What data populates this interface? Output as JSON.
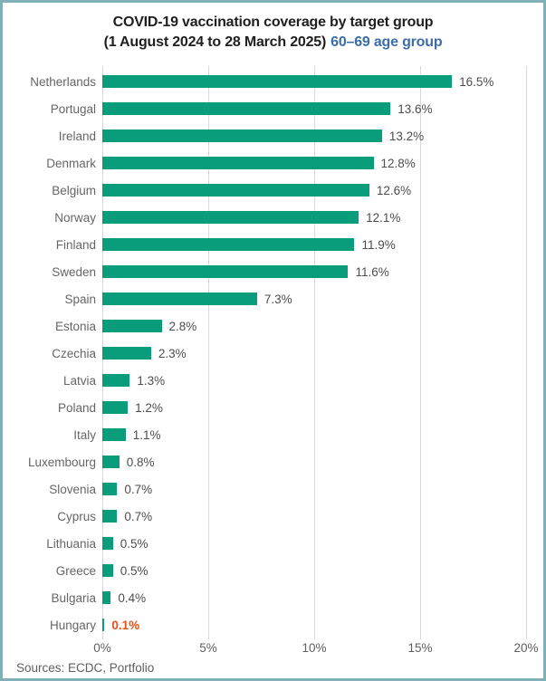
{
  "title": {
    "line1": "COVID-19 vaccination coverage by target group",
    "line2_prefix": "(1 August 2024 to 28 March 2025)",
    "line2_highlight": "60–69 age group"
  },
  "footer": {
    "sources": "Sources: ECDC, Portfolio"
  },
  "colors": {
    "frame_border": "#80b1b9",
    "bar": "#0a9d7c",
    "title_text": "#1f1f1f",
    "title_highlight": "#3d6da8",
    "country_label": "#666666",
    "value_label": "#4d4d4d",
    "highlight_value": "#ed4d16",
    "gridline": "#d8d8d8",
    "axis_label": "#5f5f5f"
  },
  "chart_data": {
    "type": "bar",
    "orientation": "horizontal",
    "title": "COVID-19 vaccination coverage by target group (1 August 2024 to 28 March 2025) 60–69 age group",
    "xlabel": "",
    "ylabel": "",
    "xlim": [
      0,
      20
    ],
    "grid": true,
    "legend": false,
    "categories": [
      "Netherlands",
      "Portugal",
      "Ireland",
      "Denmark",
      "Belgium",
      "Norway",
      "Finland",
      "Sweden",
      "Spain",
      "Estonia",
      "Czechia",
      "Latvia",
      "Poland",
      "Italy",
      "Luxembourg",
      "Slovenia",
      "Cyprus",
      "Lithuania",
      "Greece",
      "Bulgaria",
      "Hungary"
    ],
    "values": [
      16.5,
      13.6,
      13.2,
      12.8,
      12.6,
      12.1,
      11.9,
      11.6,
      7.3,
      2.8,
      2.3,
      1.3,
      1.2,
      1.1,
      0.8,
      0.7,
      0.7,
      0.5,
      0.5,
      0.4,
      0.1
    ],
    "value_labels": [
      "16.5%",
      "13.6%",
      "13.2%",
      "12.8%",
      "12.6%",
      "12.1%",
      "11.9%",
      "11.6%",
      "7.3%",
      "2.8%",
      "2.3%",
      "1.3%",
      "1.2%",
      "1.1%",
      "0.8%",
      "0.7%",
      "0.7%",
      "0.5%",
      "0.5%",
      "0.4%",
      "0.1%"
    ],
    "x_tick_values": [
      0,
      5,
      10,
      15,
      20
    ],
    "x_tick_labels": [
      "0%",
      "5%",
      "10%",
      "15%",
      "20%"
    ],
    "highlight": {
      "category": "Hungary",
      "value_color": "#ed4d16"
    }
  }
}
